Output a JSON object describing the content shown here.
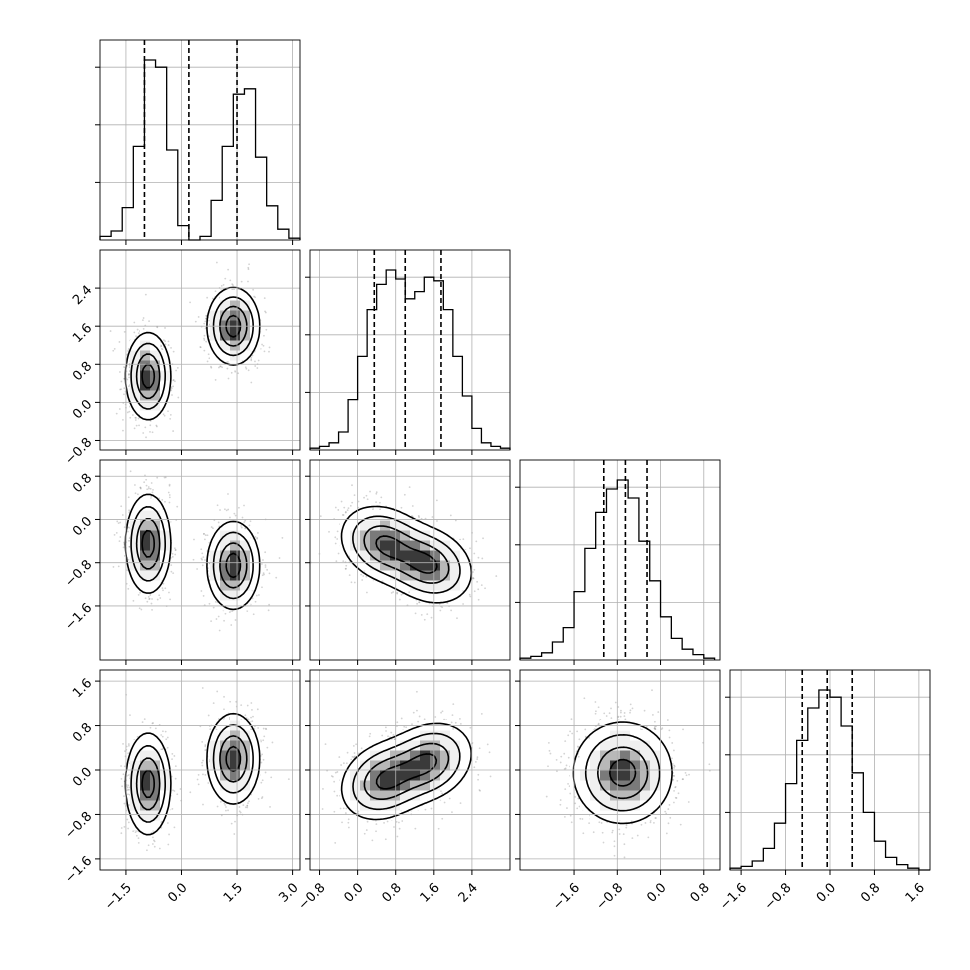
{
  "chart_data": {
    "type": "corner",
    "n_params": 4,
    "grid": true,
    "params": [
      {
        "range": [
          -2.2,
          3.2
        ],
        "ticks": [
          -1.5,
          0.0,
          1.5,
          3.0
        ],
        "tick_labels": [
          "−1.5",
          "0.0",
          "1.5",
          "3.0"
        ],
        "quantiles": [
          -1.0,
          0.2,
          1.5
        ],
        "hist_bins": [
          -2.2,
          -1.9,
          -1.6,
          -1.3,
          -1.0,
          -0.7,
          -0.4,
          -0.1,
          0.2,
          0.5,
          0.8,
          1.1,
          1.4,
          1.7,
          2.0,
          2.3,
          2.6,
          2.9,
          3.2
        ],
        "hist_counts": [
          2,
          5,
          18,
          52,
          100,
          96,
          50,
          8,
          0,
          2,
          22,
          52,
          81,
          84,
          46,
          19,
          6,
          1
        ]
      },
      {
        "range": [
          -1.0,
          3.2
        ],
        "ticks": [
          -0.8,
          0.0,
          0.8,
          1.6,
          2.4
        ],
        "tick_labels": [
          "−0.8",
          "0.0",
          "0.8",
          "1.6",
          "2.4"
        ],
        "quantiles": [
          0.35,
          1.0,
          1.75
        ],
        "hist_bins": [
          -1.0,
          -0.8,
          -0.6,
          -0.4,
          -0.2,
          0.0,
          0.2,
          0.4,
          0.6,
          0.8,
          1.0,
          1.2,
          1.4,
          1.6,
          1.8,
          2.0,
          2.2,
          2.4,
          2.6,
          2.8,
          3.0,
          3.2
        ],
        "hist_counts": [
          1,
          2,
          4,
          10,
          28,
          52,
          78,
          92,
          100,
          95,
          84,
          88,
          96,
          94,
          78,
          52,
          30,
          12,
          4,
          2,
          1
        ]
      },
      {
        "range": [
          -2.6,
          1.1
        ],
        "ticks": [
          -1.6,
          -0.8,
          0.0,
          0.8
        ],
        "tick_labels": [
          "−1.6",
          "−0.8",
          "0.0",
          "0.8"
        ],
        "quantiles": [
          -1.05,
          -0.65,
          -0.25
        ],
        "hist_bins": [
          -2.6,
          -2.4,
          -2.2,
          -2.0,
          -1.8,
          -1.6,
          -1.4,
          -1.2,
          -1.0,
          -0.8,
          -0.6,
          -0.4,
          -0.2,
          0.0,
          0.2,
          0.4,
          0.6,
          0.8,
          1.0
        ],
        "hist_counts": [
          1,
          2,
          4,
          10,
          18,
          38,
          62,
          82,
          95,
          100,
          90,
          66,
          44,
          24,
          12,
          6,
          3,
          1
        ]
      },
      {
        "range": [
          -1.8,
          1.8
        ],
        "ticks": [
          -1.6,
          -0.8,
          0.0,
          0.8,
          1.6
        ],
        "tick_labels": [
          "−1.6",
          "−0.8",
          "0.0",
          "0.8",
          "1.6"
        ],
        "quantiles": [
          -0.5,
          -0.05,
          0.4
        ],
        "hist_bins": [
          -1.8,
          -1.6,
          -1.4,
          -1.2,
          -1.0,
          -0.8,
          -0.6,
          -0.4,
          -0.2,
          0.0,
          0.2,
          0.4,
          0.6,
          0.8,
          1.0,
          1.2,
          1.4,
          1.6,
          1.8
        ],
        "hist_counts": [
          1,
          2,
          5,
          12,
          26,
          48,
          72,
          90,
          100,
          96,
          80,
          54,
          32,
          16,
          7,
          3,
          1,
          0
        ]
      }
    ],
    "pairs": [
      {
        "x": 0,
        "y": 1,
        "blobs": [
          {
            "cx": -0.9,
            "cy": 0.55,
            "sx": 0.3,
            "sy": 0.45,
            "rho": 0.0,
            "w": 0.5
          },
          {
            "cx": 1.4,
            "cy": 1.6,
            "sx": 0.35,
            "sy": 0.4,
            "rho": 0.0,
            "w": 0.5
          }
        ]
      },
      {
        "x": 0,
        "y": 2,
        "blobs": [
          {
            "cx": -0.9,
            "cy": -0.45,
            "sx": 0.3,
            "sy": 0.45,
            "rho": 0.0,
            "w": 0.5
          },
          {
            "cx": 1.4,
            "cy": -0.85,
            "sx": 0.35,
            "sy": 0.4,
            "rho": 0.0,
            "w": 0.5
          }
        ]
      },
      {
        "x": 1,
        "y": 2,
        "blobs": [
          {
            "cx": 0.55,
            "cy": -0.45,
            "sx": 0.45,
            "sy": 0.35,
            "rho": -0.2,
            "w": 0.5
          },
          {
            "cx": 1.5,
            "cy": -0.85,
            "sx": 0.45,
            "sy": 0.35,
            "rho": -0.2,
            "w": 0.5
          }
        ]
      },
      {
        "x": 0,
        "y": 3,
        "blobs": [
          {
            "cx": -0.9,
            "cy": -0.25,
            "sx": 0.3,
            "sy": 0.45,
            "rho": 0.0,
            "w": 0.5
          },
          {
            "cx": 1.4,
            "cy": 0.2,
            "sx": 0.35,
            "sy": 0.4,
            "rho": 0.0,
            "w": 0.5
          }
        ]
      },
      {
        "x": 1,
        "y": 3,
        "blobs": [
          {
            "cx": 0.55,
            "cy": -0.2,
            "sx": 0.45,
            "sy": 0.35,
            "rho": 0.2,
            "w": 0.5
          },
          {
            "cx": 1.5,
            "cy": 0.15,
            "sx": 0.45,
            "sy": 0.35,
            "rho": 0.2,
            "w": 0.5
          }
        ]
      },
      {
        "x": 2,
        "y": 3,
        "blobs": [
          {
            "cx": -0.7,
            "cy": -0.05,
            "sx": 0.45,
            "sy": 0.45,
            "rho": 0.0,
            "w": 1.0
          }
        ]
      }
    ],
    "style": {
      "hist_color": "#000000",
      "density_color": "#404040",
      "scatter_color": "#808080",
      "grid_color": "#b0b0b0"
    }
  }
}
